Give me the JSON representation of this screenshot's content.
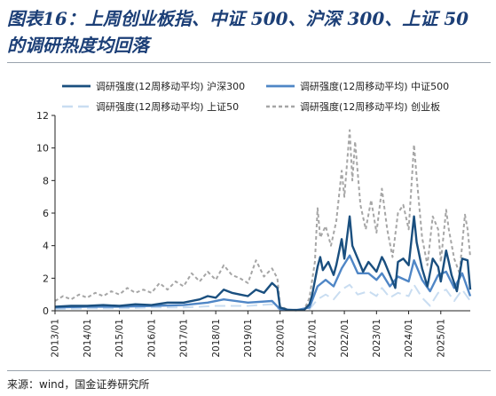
{
  "title_line1": "图表16：上周创业板指、中证 500、沪深 300、上证 50",
  "title_line2": "的调研热度均回落",
  "source": "来源：wind，国金证券研究所",
  "chart_data": {
    "type": "line",
    "title": "",
    "xlabel": "",
    "ylabel": "",
    "ylim": [
      0,
      12
    ],
    "yticks": [
      0,
      2,
      4,
      6,
      8,
      10,
      12
    ],
    "xrange": [
      "2013/01",
      "2025/12"
    ],
    "xticks": [
      "2013/01",
      "2014/01",
      "2015/01",
      "2016/01",
      "2017/01",
      "2018/01",
      "2019/01",
      "2020/01",
      "2021/01",
      "2022/01",
      "2023/01",
      "2024/01",
      "2025/01"
    ],
    "grid": false,
    "legend_position": "top",
    "series": [
      {
        "name": "调研强度(12周移动平均) 沪深300",
        "color": "#1a4f7f",
        "dash": "solid",
        "points": [
          [
            "2013/01",
            0.25
          ],
          [
            "2013/07",
            0.3
          ],
          [
            "2014/01",
            0.3
          ],
          [
            "2014/07",
            0.35
          ],
          [
            "2015/01",
            0.3
          ],
          [
            "2015/07",
            0.4
          ],
          [
            "2016/01",
            0.35
          ],
          [
            "2016/07",
            0.5
          ],
          [
            "2017/01",
            0.5
          ],
          [
            "2017/07",
            0.7
          ],
          [
            "2017/10",
            0.9
          ],
          [
            "2018/01",
            0.8
          ],
          [
            "2018/04",
            1.3
          ],
          [
            "2018/07",
            1.1
          ],
          [
            "2018/10",
            1.0
          ],
          [
            "2019/01",
            0.9
          ],
          [
            "2019/04",
            1.3
          ],
          [
            "2019/07",
            1.1
          ],
          [
            "2019/10",
            1.7
          ],
          [
            "2019/12",
            1.4
          ],
          [
            "2020/01",
            0.2
          ],
          [
            "2020/04",
            0.05
          ],
          [
            "2020/07",
            0.05
          ],
          [
            "2020/10",
            0.05
          ],
          [
            "2020/12",
            0.4
          ],
          [
            "2021/01",
            1.0
          ],
          [
            "2021/03",
            2.7
          ],
          [
            "2021/04",
            3.3
          ],
          [
            "2021/05",
            2.5
          ],
          [
            "2021/07",
            3.0
          ],
          [
            "2021/09",
            2.2
          ],
          [
            "2021/10",
            2.8
          ],
          [
            "2021/12",
            4.4
          ],
          [
            "2022/01",
            3.2
          ],
          [
            "2022/03",
            5.8
          ],
          [
            "2022/04",
            4.0
          ],
          [
            "2022/06",
            3.2
          ],
          [
            "2022/08",
            2.4
          ],
          [
            "2022/10",
            3.0
          ],
          [
            "2023/01",
            2.4
          ],
          [
            "2023/03",
            3.3
          ],
          [
            "2023/04",
            3.0
          ],
          [
            "2023/06",
            2.2
          ],
          [
            "2023/08",
            1.4
          ],
          [
            "2023/09",
            3.0
          ],
          [
            "2023/11",
            3.2
          ],
          [
            "2024/01",
            2.8
          ],
          [
            "2024/03",
            5.8
          ],
          [
            "2024/04",
            4.2
          ],
          [
            "2024/06",
            2.6
          ],
          [
            "2024/08",
            1.5
          ],
          [
            "2024/10",
            3.2
          ],
          [
            "2024/12",
            2.7
          ],
          [
            "2025/01",
            1.8
          ],
          [
            "2025/03",
            3.7
          ],
          [
            "2025/04",
            3.0
          ],
          [
            "2025/05",
            2.2
          ],
          [
            "2025/07",
            1.2
          ],
          [
            "2025/09",
            3.2
          ],
          [
            "2025/11",
            3.1
          ],
          [
            "2025/12",
            1.3
          ]
        ]
      },
      {
        "name": "调研强度(12周移动平均) 中证500",
        "color": "#4f86c6",
        "dash": "solid",
        "points": [
          [
            "2013/01",
            0.2
          ],
          [
            "2014/01",
            0.25
          ],
          [
            "2015/01",
            0.25
          ],
          [
            "2016/01",
            0.3
          ],
          [
            "2017/01",
            0.35
          ],
          [
            "2017/10",
            0.5
          ],
          [
            "2018/04",
            0.7
          ],
          [
            "2019/01",
            0.5
          ],
          [
            "2019/10",
            0.6
          ],
          [
            "2020/01",
            0.1
          ],
          [
            "2020/07",
            0.03
          ],
          [
            "2020/12",
            0.2
          ],
          [
            "2021/03",
            1.5
          ],
          [
            "2021/06",
            1.9
          ],
          [
            "2021/09",
            1.5
          ],
          [
            "2021/12",
            2.6
          ],
          [
            "2022/03",
            3.4
          ],
          [
            "2022/06",
            2.3
          ],
          [
            "2022/10",
            2.3
          ],
          [
            "2023/01",
            1.9
          ],
          [
            "2023/03",
            2.3
          ],
          [
            "2023/06",
            1.5
          ],
          [
            "2023/09",
            2.1
          ],
          [
            "2024/01",
            1.8
          ],
          [
            "2024/03",
            3.1
          ],
          [
            "2024/06",
            1.9
          ],
          [
            "2024/09",
            1.2
          ],
          [
            "2024/12",
            2.2
          ],
          [
            "2025/03",
            2.4
          ],
          [
            "2025/06",
            1.4
          ],
          [
            "2025/09",
            2.3
          ],
          [
            "2025/12",
            0.9
          ]
        ]
      },
      {
        "name": "调研强度(12周移动平均) 上证50",
        "color": "#c9ddf1",
        "dash": "long-dash",
        "points": [
          [
            "2013/01",
            0.1
          ],
          [
            "2014/01",
            0.15
          ],
          [
            "2015/01",
            0.15
          ],
          [
            "2016/01",
            0.2
          ],
          [
            "2017/01",
            0.2
          ],
          [
            "2018/01",
            0.3
          ],
          [
            "2019/01",
            0.3
          ],
          [
            "2019/10",
            0.4
          ],
          [
            "2020/01",
            0.05
          ],
          [
            "2020/07",
            0.02
          ],
          [
            "2020/12",
            0.1
          ],
          [
            "2021/03",
            0.7
          ],
          [
            "2021/06",
            1.0
          ],
          [
            "2021/09",
            0.7
          ],
          [
            "2021/12",
            1.3
          ],
          [
            "2022/03",
            1.6
          ],
          [
            "2022/06",
            1.0
          ],
          [
            "2022/10",
            1.2
          ],
          [
            "2023/01",
            0.9
          ],
          [
            "2023/03",
            1.4
          ],
          [
            "2023/06",
            0.8
          ],
          [
            "2023/09",
            1.1
          ],
          [
            "2024/01",
            0.9
          ],
          [
            "2024/03",
            1.6
          ],
          [
            "2024/06",
            0.8
          ],
          [
            "2024/09",
            0.3
          ],
          [
            "2024/12",
            1.1
          ],
          [
            "2025/03",
            1.3
          ],
          [
            "2025/06",
            0.6
          ],
          [
            "2025/09",
            1.3
          ],
          [
            "2025/12",
            0.6
          ]
        ]
      },
      {
        "name": "调研强度(12周移动平均) 创业板",
        "color": "#a6a6a6",
        "dash": "short-dash",
        "points": [
          [
            "2013/01",
            0.6
          ],
          [
            "2013/04",
            0.9
          ],
          [
            "2013/07",
            0.7
          ],
          [
            "2013/10",
            1.0
          ],
          [
            "2014/01",
            0.8
          ],
          [
            "2014/04",
            1.1
          ],
          [
            "2014/07",
            0.9
          ],
          [
            "2014/10",
            1.2
          ],
          [
            "2015/01",
            1.0
          ],
          [
            "2015/04",
            1.4
          ],
          [
            "2015/07",
            1.1
          ],
          [
            "2015/10",
            1.3
          ],
          [
            "2016/01",
            1.1
          ],
          [
            "2016/04",
            1.7
          ],
          [
            "2016/07",
            1.3
          ],
          [
            "2016/10",
            1.8
          ],
          [
            "2017/01",
            1.5
          ],
          [
            "2017/04",
            2.3
          ],
          [
            "2017/07",
            1.8
          ],
          [
            "2017/10",
            2.4
          ],
          [
            "2018/01",
            1.9
          ],
          [
            "2018/04",
            2.8
          ],
          [
            "2018/07",
            2.2
          ],
          [
            "2018/10",
            2.0
          ],
          [
            "2019/01",
            1.7
          ],
          [
            "2019/04",
            3.1
          ],
          [
            "2019/07",
            2.1
          ],
          [
            "2019/10",
            2.6
          ],
          [
            "2019/12",
            2.0
          ],
          [
            "2020/01",
            0.3
          ],
          [
            "2020/04",
            0.05
          ],
          [
            "2020/07",
            0.05
          ],
          [
            "2020/10",
            0.05
          ],
          [
            "2020/12",
            0.8
          ],
          [
            "2021/02",
            3.0
          ],
          [
            "2021/03",
            6.3
          ],
          [
            "2021/04",
            4.5
          ],
          [
            "2021/06",
            5.2
          ],
          [
            "2021/08",
            4.0
          ],
          [
            "2021/10",
            5.5
          ],
          [
            "2021/12",
            8.6
          ],
          [
            "2022/01",
            7.0
          ],
          [
            "2022/03",
            11.1
          ],
          [
            "2022/04",
            8.0
          ],
          [
            "2022/05",
            10.4
          ],
          [
            "2022/07",
            6.5
          ],
          [
            "2022/09",
            5.0
          ],
          [
            "2022/11",
            6.8
          ],
          [
            "2023/01",
            4.8
          ],
          [
            "2023/03",
            7.5
          ],
          [
            "2023/05",
            5.0
          ],
          [
            "2023/07",
            3.3
          ],
          [
            "2023/09",
            6.0
          ],
          [
            "2023/11",
            6.5
          ],
          [
            "2024/01",
            5.0
          ],
          [
            "2024/03",
            10.2
          ],
          [
            "2024/04",
            8.2
          ],
          [
            "2024/06",
            4.5
          ],
          [
            "2024/08",
            2.8
          ],
          [
            "2024/10",
            5.8
          ],
          [
            "2024/12",
            5.0
          ],
          [
            "2025/01",
            3.0
          ],
          [
            "2025/03",
            6.2
          ],
          [
            "2025/04",
            5.0
          ],
          [
            "2025/06",
            3.2
          ],
          [
            "2025/08",
            2.3
          ],
          [
            "2025/10",
            5.9
          ],
          [
            "2025/11",
            5.0
          ],
          [
            "2025/12",
            3.3
          ]
        ]
      }
    ]
  }
}
